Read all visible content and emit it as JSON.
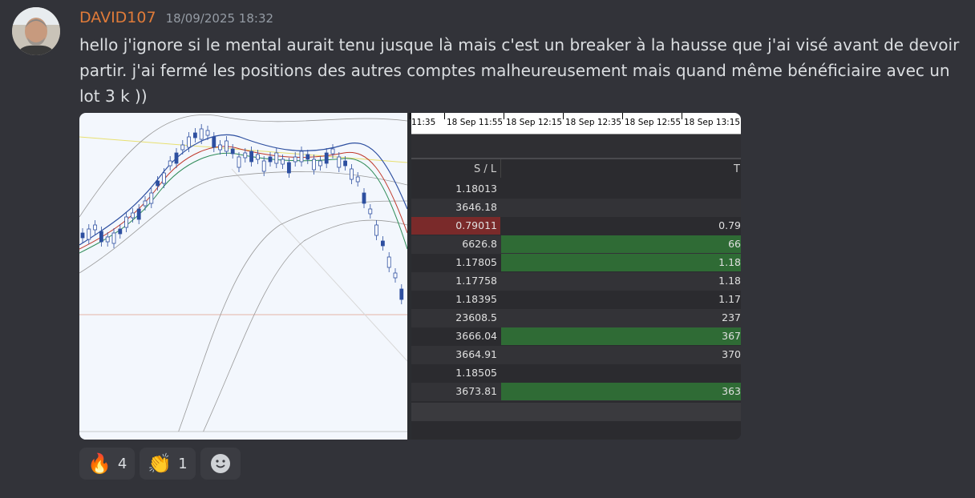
{
  "message": {
    "username": "DAVID107",
    "timestamp": "18/09/2025 18:32",
    "text": "hello j'ignore si le mental aurait tenu jusque là mais c'est un breaker à la hausse que j'ai visé avant de devoir partir. j'ai fermé les positions des autres comptes malheureusement mais quand même bénéficiaire avec un lot 3 k ))"
  },
  "table_screenshot": {
    "time_labels": [
      "11:35",
      "18 Sep 11:55",
      "18 Sep 12:15",
      "18 Sep 12:35",
      "18 Sep 12:55",
      "18 Sep 13:15"
    ],
    "headers": {
      "sl": "S / L",
      "tp": "T"
    },
    "rows": [
      {
        "sl": "1.18013",
        "tp": "",
        "sl_color": "none",
        "tp_color": "none"
      },
      {
        "sl": "3646.18",
        "tp": "",
        "sl_color": "none",
        "tp_color": "none"
      },
      {
        "sl": "0.79011",
        "tp": "0.79",
        "sl_color": "#7a2a2a",
        "tp_color": "none"
      },
      {
        "sl": "6626.8",
        "tp": "66",
        "sl_color": "none",
        "tp_color": "#2f6b35"
      },
      {
        "sl": "1.17805",
        "tp": "1.18",
        "sl_color": "none",
        "tp_color": "#2f6b35"
      },
      {
        "sl": "1.17758",
        "tp": "1.18",
        "sl_color": "none",
        "tp_color": "none"
      },
      {
        "sl": "1.18395",
        "tp": "1.17",
        "sl_color": "none",
        "tp_color": "none"
      },
      {
        "sl": "23608.5",
        "tp": "237",
        "sl_color": "none",
        "tp_color": "none"
      },
      {
        "sl": "3666.04",
        "tp": "367",
        "sl_color": "none",
        "tp_color": "#2f6b35"
      },
      {
        "sl": "3664.91",
        "tp": "370",
        "sl_color": "none",
        "tp_color": "none"
      },
      {
        "sl": "1.18505",
        "tp": "",
        "sl_color": "none",
        "tp_color": "none"
      },
      {
        "sl": "3673.81",
        "tp": "363",
        "sl_color": "none",
        "tp_color": "#2f6b35"
      }
    ]
  },
  "reactions": [
    {
      "emoji": "🔥",
      "icon": "fire-icon",
      "count": "4"
    },
    {
      "emoji": "👏",
      "icon": "clap-icon",
      "count": "1"
    }
  ],
  "add_reaction_icon": "smiley-icon",
  "colors": {
    "username": "#e07b39",
    "background": "#323339",
    "loss": "#7a2a2a",
    "profit": "#2f6b35"
  }
}
